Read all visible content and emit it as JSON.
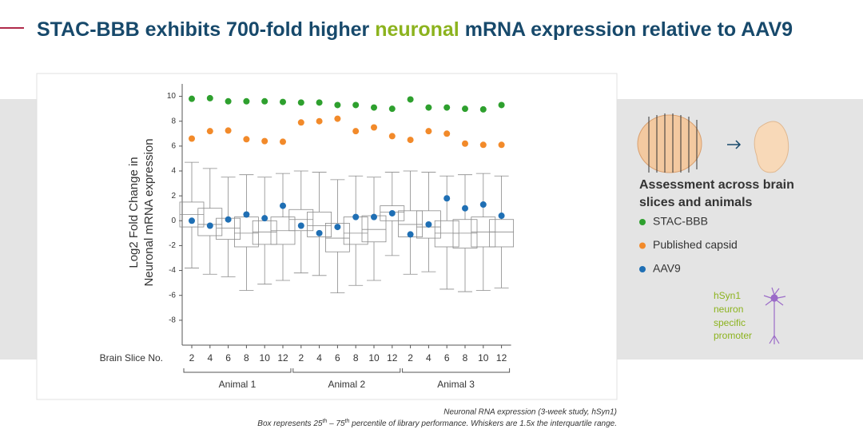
{
  "header": {
    "title_parts": [
      "STAC-BBB exhibits 700-fold higher ",
      "neuronal",
      " mRNA expression relative to AAV9"
    ]
  },
  "chart_data": {
    "type": "box",
    "y_label_lines": [
      "Log2 Fold Change in",
      "Neuronal mRNA expression"
    ],
    "x_label": "Brain Slice No.",
    "categories": [
      "2",
      "4",
      "6",
      "8",
      "10",
      "12",
      "2",
      "4",
      "6",
      "8",
      "10",
      "12",
      "2",
      "4",
      "6",
      "8",
      "10",
      "12"
    ],
    "groups": [
      "Animal 1",
      "Animal 2",
      "Animal 3"
    ],
    "ylim": [
      -10,
      11
    ],
    "yticks": [
      -8,
      -6,
      -4,
      -2,
      0,
      2,
      4,
      6,
      8,
      10
    ],
    "box_color": "#8a8a8a",
    "boxes": [
      {
        "low": -3.8,
        "q1": -0.5,
        "median": 0.5,
        "q3": 1.5,
        "high": 4.7
      },
      {
        "low": -4.3,
        "q1": -1.2,
        "median": -0.3,
        "q3": 1.0,
        "high": 4.2
      },
      {
        "low": -4.5,
        "q1": -1.5,
        "median": -0.6,
        "q3": 0.2,
        "high": 3.5
      },
      {
        "low": -5.6,
        "q1": -2.1,
        "median": -1.0,
        "q3": 0.3,
        "high": 3.7
      },
      {
        "low": -5.1,
        "q1": -1.9,
        "median": -0.9,
        "q3": 0.0,
        "high": 3.5
      },
      {
        "low": -4.8,
        "q1": -1.9,
        "median": -0.8,
        "q3": 0.3,
        "high": 3.8
      },
      {
        "low": -4.2,
        "q1": -0.8,
        "median": 0.1,
        "q3": 0.9,
        "high": 4.0
      },
      {
        "low": -4.4,
        "q1": -1.3,
        "median": -0.4,
        "q3": 0.7,
        "high": 3.9
      },
      {
        "low": -5.8,
        "q1": -2.5,
        "median": -1.4,
        "q3": -0.2,
        "high": 3.3
      },
      {
        "low": -5.2,
        "q1": -1.9,
        "median": -1.0,
        "q3": 0.3,
        "high": 3.6
      },
      {
        "low": -4.8,
        "q1": -1.7,
        "median": -0.7,
        "q3": 0.4,
        "high": 3.5
      },
      {
        "low": -2.8,
        "q1": 0.0,
        "median": 0.7,
        "q3": 1.2,
        "high": 3.9
      },
      {
        "low": -4.3,
        "q1": -1.3,
        "median": -0.3,
        "q3": 0.8,
        "high": 4.0
      },
      {
        "low": -4.1,
        "q1": -1.4,
        "median": -0.5,
        "q3": 0.8,
        "high": 3.9
      },
      {
        "low": -5.5,
        "q1": -2.1,
        "median": -1.0,
        "q3": 0.0,
        "high": 3.6
      },
      {
        "low": -5.7,
        "q1": -2.2,
        "median": -1.0,
        "q3": 0.1,
        "high": 3.7
      },
      {
        "low": -5.6,
        "q1": -2.1,
        "median": -0.9,
        "q3": 0.3,
        "high": 3.8
      },
      {
        "low": -5.4,
        "q1": -2.1,
        "median": -0.9,
        "q3": 0.1,
        "high": 3.6
      }
    ],
    "series": [
      {
        "name": "STAC-BBB",
        "color": "#2ea02e",
        "values": [
          9.8,
          9.85,
          9.6,
          9.6,
          9.6,
          9.55,
          9.5,
          9.5,
          9.3,
          9.3,
          9.1,
          9.0,
          9.75,
          9.1,
          9.1,
          9.0,
          8.95,
          9.3
        ]
      },
      {
        "name": "Published capsid",
        "color": "#f28a2a",
        "values": [
          6.6,
          7.2,
          7.25,
          6.55,
          6.4,
          6.35,
          7.9,
          8.0,
          8.2,
          7.2,
          7.5,
          6.8,
          6.5,
          7.2,
          7.0,
          6.2,
          6.1,
          6.1
        ]
      },
      {
        "name": "AAV9",
        "color": "#1f6fb4",
        "values": [
          0.0,
          -0.4,
          0.1,
          0.5,
          0.2,
          1.2,
          -0.4,
          -1.0,
          -0.5,
          0.3,
          0.3,
          0.6,
          -1.1,
          -0.3,
          1.8,
          1.0,
          1.3,
          0.4
        ]
      }
    ]
  },
  "panel": {
    "heading_lines": [
      "Assessment across brain",
      "slices and animals"
    ],
    "promoter_lines": [
      "hSyn1",
      "neuron",
      "specific",
      "promoter"
    ]
  },
  "footnote": {
    "line1": "Neuronal RNA expression (3-week study, hSyn1)",
    "line2_parts": [
      "Box represents 25",
      "th",
      " – 75",
      "th",
      " percentile of library performance. Whiskers are 1.5x the interquartile range."
    ]
  }
}
